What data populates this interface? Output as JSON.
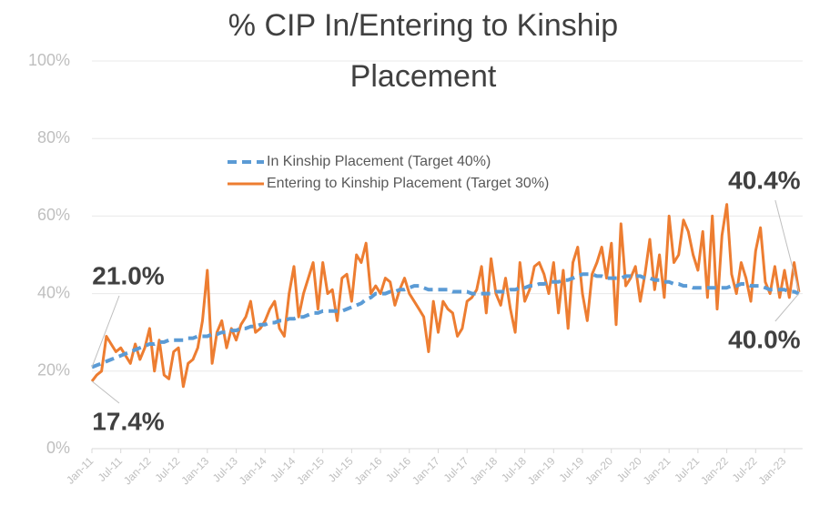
{
  "chart_data": {
    "type": "line",
    "title": "% CIP In/Entering to Kinship Placement",
    "categories": [
      "Jan-11",
      null,
      null,
      null,
      null,
      null,
      "Jul-11",
      null,
      null,
      null,
      null,
      null,
      "Jan-12",
      null,
      null,
      null,
      null,
      null,
      "Jul-12",
      null,
      null,
      null,
      null,
      null,
      "Jan-13",
      null,
      null,
      null,
      null,
      null,
      "Jul-13",
      null,
      null,
      null,
      null,
      null,
      "Jan-14",
      null,
      null,
      null,
      null,
      null,
      "Jul-14",
      null,
      null,
      null,
      null,
      null,
      "Jan-15",
      null,
      null,
      null,
      null,
      null,
      "Jul-15",
      null,
      null,
      null,
      null,
      null,
      "Jan-16",
      null,
      null,
      null,
      null,
      null,
      "Jul-16",
      null,
      null,
      null,
      null,
      null,
      "Jan-17",
      null,
      null,
      null,
      null,
      null,
      "Jul-17",
      null,
      null,
      null,
      null,
      null,
      "Jan-18",
      null,
      null,
      null,
      null,
      null,
      "Jul-18",
      null,
      null,
      null,
      null,
      null,
      "Jan-19",
      null,
      null,
      null,
      null,
      null,
      "Jul-19",
      null,
      null,
      null,
      null,
      null,
      "Jan-20",
      null,
      null,
      null,
      null,
      null,
      "Jul-20",
      null,
      null,
      null,
      null,
      null,
      "Jan-21",
      null,
      null,
      null,
      null,
      null,
      "Jul-21",
      null,
      null,
      null,
      null,
      null,
      "Jan-22",
      null,
      null,
      null,
      null,
      null,
      "Jul-22",
      null,
      null,
      null,
      null,
      null,
      "Jan-23",
      null,
      null,
      null
    ],
    "series": [
      {
        "name": "In Kinship Placement (Target 40%)",
        "color": "#5b9bd5",
        "dash": true,
        "values": [
          21.0,
          21.5,
          22,
          22.5,
          23,
          23.5,
          24,
          24.5,
          25,
          25.5,
          26,
          26.5,
          27,
          27,
          27.5,
          27.5,
          28,
          28,
          28,
          28,
          28.5,
          28.5,
          29,
          29,
          29,
          29.5,
          29.5,
          30,
          30,
          30.5,
          30.5,
          31,
          31,
          31.5,
          31.5,
          32,
          32,
          32.5,
          32.5,
          33,
          33,
          33.5,
          33.5,
          34,
          34,
          34.5,
          35,
          35,
          35.5,
          35.5,
          35.5,
          35.5,
          35.5,
          36,
          36.5,
          37,
          37.5,
          38.5,
          39,
          40,
          40,
          40,
          40.5,
          40.5,
          41,
          41,
          41.5,
          42,
          42,
          41.5,
          41,
          41,
          41,
          41,
          41,
          40.5,
          40.5,
          40.5,
          40.5,
          40,
          40,
          40,
          40,
          40,
          40.5,
          40.5,
          40.5,
          41,
          41,
          41.5,
          41.5,
          42,
          42,
          42.5,
          42.5,
          43,
          43,
          43,
          43.5,
          43.5,
          44,
          44.5,
          45,
          45,
          45,
          44.5,
          44.5,
          44,
          44,
          44,
          44,
          44.5,
          44.5,
          44.5,
          44.5,
          44,
          44,
          43.5,
          43.5,
          43,
          43,
          42.5,
          42.5,
          42,
          42,
          41.5,
          41.5,
          41.5,
          41.5,
          41.5,
          41.5,
          41.5,
          41.5,
          42,
          42,
          42.5,
          42.5,
          42,
          42,
          42,
          41.5,
          41,
          41,
          41,
          41,
          40.5,
          40.5,
          40.0
        ],
        "value_labels": [
          "21.0%",
          null,
          null,
          null,
          null,
          null,
          null,
          null,
          null,
          null,
          null,
          null,
          null,
          null,
          null,
          null,
          null,
          null,
          null,
          null,
          null,
          null,
          null,
          null,
          null,
          null,
          null,
          null,
          null,
          null,
          null,
          null,
          null,
          null,
          null,
          null,
          null,
          null,
          null,
          null,
          null,
          null,
          null,
          null,
          null,
          null,
          null,
          null,
          null,
          null,
          null,
          null,
          null,
          null,
          null,
          null,
          null,
          null,
          null,
          null,
          null,
          null,
          null,
          null,
          null,
          null,
          null,
          null,
          null,
          null,
          null,
          null,
          null,
          null,
          null,
          null,
          null,
          null,
          null,
          null,
          null,
          null,
          null,
          null,
          null,
          null,
          null,
          null,
          null,
          null,
          null,
          null,
          null,
          null,
          null,
          null,
          null,
          null,
          null,
          null,
          null,
          null,
          null,
          null,
          null,
          null,
          null,
          null,
          null,
          null,
          null,
          null,
          null,
          null,
          null,
          null,
          null,
          null,
          null,
          null,
          null,
          null,
          null,
          null,
          null,
          null,
          null,
          null,
          null,
          null,
          null,
          null,
          null,
          null,
          null,
          null,
          null,
          null,
          null,
          null,
          null,
          null,
          null,
          null,
          null,
          null,
          null,
          "40.0%"
        ]
      },
      {
        "name": "Entering to Kinship Placement (Target 30%)",
        "color": "#ed7d31",
        "dash": false,
        "values": [
          17.4,
          19,
          20,
          29,
          27,
          25,
          26,
          24,
          22,
          27,
          23,
          26,
          31,
          20,
          28,
          19,
          18,
          25,
          26,
          16,
          22,
          23,
          26,
          33,
          46,
          22,
          30,
          33,
          26,
          31,
          28,
          32,
          34,
          38,
          30,
          31,
          33,
          36,
          38,
          31,
          29,
          40,
          47,
          34,
          40,
          44,
          48,
          36,
          48,
          40,
          41,
          33,
          44,
          45,
          38,
          50,
          48,
          53,
          40,
          42,
          40,
          44,
          43,
          37,
          41,
          44,
          40,
          38,
          36,
          34,
          25,
          38,
          30,
          38,
          36,
          35,
          29,
          31,
          38,
          39,
          41,
          47,
          35,
          49,
          40,
          37,
          44,
          36,
          30,
          48,
          38,
          41,
          47,
          48,
          45,
          40,
          48,
          35,
          46,
          31,
          48,
          52,
          40,
          33,
          45,
          48,
          52,
          44,
          53,
          32,
          58,
          42,
          44,
          47,
          38,
          45,
          54,
          41,
          50,
          39,
          60,
          48,
          50,
          59,
          56,
          50,
          46,
          56,
          39,
          60,
          36,
          55,
          63,
          45,
          40,
          48,
          44,
          38,
          51,
          57,
          43,
          40,
          47,
          39,
          46,
          39,
          48,
          40.4
        ],
        "value_labels": [
          "17.4%",
          null,
          null,
          null,
          null,
          null,
          null,
          null,
          null,
          null,
          null,
          null,
          null,
          null,
          null,
          null,
          null,
          null,
          null,
          null,
          null,
          null,
          null,
          null,
          null,
          null,
          null,
          null,
          null,
          null,
          null,
          null,
          null,
          null,
          null,
          null,
          null,
          null,
          null,
          null,
          null,
          null,
          null,
          null,
          null,
          null,
          null,
          null,
          null,
          null,
          null,
          null,
          null,
          null,
          null,
          null,
          null,
          null,
          null,
          null,
          null,
          null,
          null,
          null,
          null,
          null,
          null,
          null,
          null,
          null,
          null,
          null,
          null,
          null,
          null,
          null,
          null,
          null,
          null,
          null,
          null,
          null,
          null,
          null,
          null,
          null,
          null,
          null,
          null,
          null,
          null,
          null,
          null,
          null,
          null,
          null,
          null,
          null,
          null,
          null,
          null,
          null,
          null,
          null,
          null,
          null,
          null,
          null,
          null,
          null,
          null,
          null,
          null,
          null,
          null,
          null,
          null,
          null,
          null,
          null,
          null,
          null,
          null,
          null,
          null,
          null,
          null,
          null,
          null,
          null,
          null,
          null,
          null,
          null,
          null,
          null,
          null,
          null,
          null,
          null,
          null,
          null,
          null,
          null,
          null,
          null,
          null,
          "40.4%"
        ]
      }
    ],
    "ylim": [
      0,
      100
    ],
    "yticks": [
      {
        "value": 0,
        "label": "0%"
      },
      {
        "value": 20,
        "label": "20%"
      },
      {
        "value": 40,
        "label": "40%"
      },
      {
        "value": 60,
        "label": "60%"
      },
      {
        "value": 80,
        "label": "80%"
      },
      {
        "value": 100,
        "label": "100%"
      }
    ],
    "grid": true
  }
}
